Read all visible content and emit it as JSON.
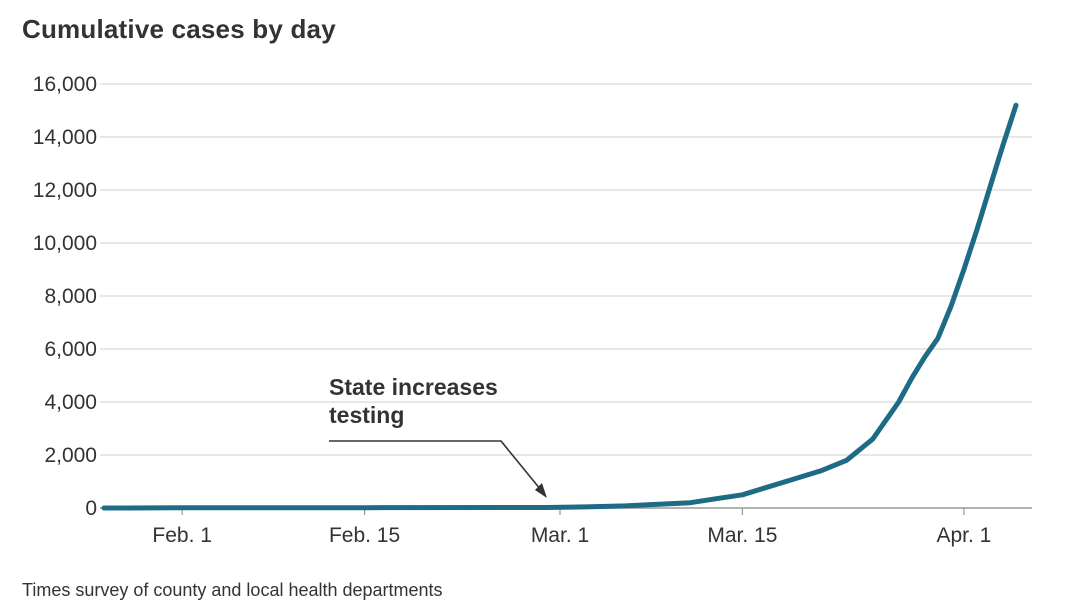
{
  "chart_data": {
    "type": "line",
    "title": "Cumulative cases by day",
    "source": "Times survey of county and local health departments",
    "xlabel": "",
    "ylabel": "",
    "ylim": [
      0,
      16000
    ],
    "yticks": [
      0,
      2000,
      4000,
      6000,
      8000,
      10000,
      12000,
      14000,
      16000
    ],
    "ytick_labels": [
      "0",
      "2,000",
      "4,000",
      "6,000",
      "8,000",
      "10,000",
      "12,000",
      "14,000",
      "16,000"
    ],
    "xlim": [
      "2020-01-26",
      "2020-04-05"
    ],
    "xticks": [
      {
        "date": "2020-02-01",
        "label": "Feb. 1"
      },
      {
        "date": "2020-02-15",
        "label": "Feb. 15"
      },
      {
        "date": "2020-03-01",
        "label": "Mar. 1"
      },
      {
        "date": "2020-03-15",
        "label": "Mar. 15"
      },
      {
        "date": "2020-04-01",
        "label": "Apr. 1"
      }
    ],
    "grid": true,
    "line_color": "#1d6b85",
    "annotation": {
      "lines": [
        "State increases",
        "testing"
      ],
      "date": "2020-02-29",
      "value": 0
    },
    "series": [
      {
        "points": [
          {
            "x": "2020-01-26",
            "y": 1
          },
          {
            "x": "2020-02-01",
            "y": 6
          },
          {
            "x": "2020-02-15",
            "y": 13
          },
          {
            "x": "2020-02-29",
            "y": 18
          },
          {
            "x": "2020-03-03",
            "y": 40
          },
          {
            "x": "2020-03-06",
            "y": 80
          },
          {
            "x": "2020-03-09",
            "y": 150
          },
          {
            "x": "2020-03-11",
            "y": 200
          },
          {
            "x": "2020-03-13",
            "y": 350
          },
          {
            "x": "2020-03-15",
            "y": 500
          },
          {
            "x": "2020-03-17",
            "y": 800
          },
          {
            "x": "2020-03-19",
            "y": 1100
          },
          {
            "x": "2020-03-21",
            "y": 1400
          },
          {
            "x": "2020-03-23",
            "y": 1800
          },
          {
            "x": "2020-03-25",
            "y": 2600
          },
          {
            "x": "2020-03-26",
            "y": 3300
          },
          {
            "x": "2020-03-27",
            "y": 4000
          },
          {
            "x": "2020-03-28",
            "y": 4900
          },
          {
            "x": "2020-03-29",
            "y": 5700
          },
          {
            "x": "2020-03-30",
            "y": 6400
          },
          {
            "x": "2020-03-31",
            "y": 7600
          },
          {
            "x": "2020-04-01",
            "y": 9000
          },
          {
            "x": "2020-04-02",
            "y": 10500
          },
          {
            "x": "2020-04-03",
            "y": 12100
          },
          {
            "x": "2020-04-04",
            "y": 13700
          },
          {
            "x": "2020-04-05",
            "y": 15200
          }
        ]
      }
    ]
  }
}
